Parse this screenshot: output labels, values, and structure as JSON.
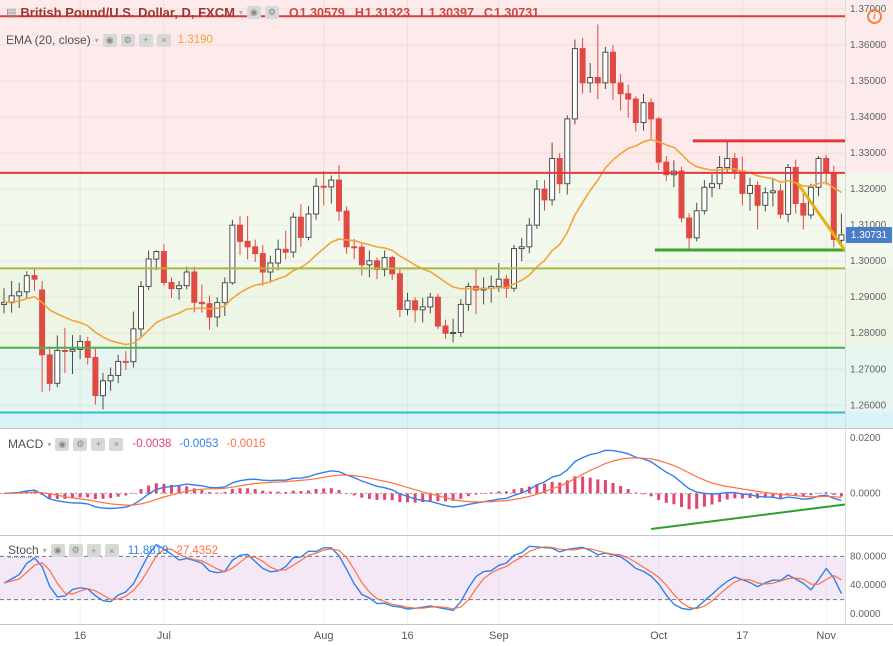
{
  "icon_glyphs": {
    "chart-icon": "▤",
    "chevron-down-icon": "▾",
    "eye-icon": "◉",
    "gear-icon": "⚙",
    "plus-icon": "+",
    "close-icon": "×",
    "info-icon": "i"
  },
  "header": {
    "title": "British Pound/U.S. Dollar, D, FXCM",
    "info_glyph": "i",
    "ohlc": [
      {
        "label": "O",
        "value": "1.30579"
      },
      {
        "label": "H",
        "value": "1.31323"
      },
      {
        "label": "L",
        "value": "1.30397"
      },
      {
        "label": "C",
        "value": "1.30731"
      }
    ]
  },
  "ema_legend": {
    "label": "EMA (20, close)",
    "value": "1.3190",
    "color": "#f2a33c"
  },
  "macd_legend": {
    "label": "MACD",
    "values": [
      {
        "text": "-0.0038",
        "color": "#e5446d"
      },
      {
        "text": "-0.0053",
        "color": "#2f80ed"
      },
      {
        "text": "-0.0016",
        "color": "#ff7043"
      }
    ]
  },
  "stoch_legend": {
    "label": "Stoch",
    "values": [
      {
        "text": "11.8819",
        "color": "#2f80ed"
      },
      {
        "text": "27.4352",
        "color": "#ff7043"
      }
    ]
  },
  "last_price": {
    "value": "1.30731",
    "bg": "#4a7dc9"
  },
  "chart_data": {
    "type": "candlestick",
    "title": "British Pound/U.S. Dollar, D, FXCM",
    "ema_period": 20,
    "price_axis": {
      "min": 1.2537,
      "max": 1.3725,
      "ticks": [
        "1.37000",
        "1.36000",
        "1.35000",
        "1.34000",
        "1.33000",
        "1.32000",
        "1.31000",
        "1.30000",
        "1.29000",
        "1.28000",
        "1.27000",
        "1.26000"
      ]
    },
    "time_ticks": [
      {
        "label": "16",
        "i": 10
      },
      {
        "label": "Jul",
        "i": 21
      },
      {
        "label": "Aug",
        "i": 42
      },
      {
        "label": "16",
        "i": 53
      },
      {
        "label": "Sep",
        "i": 65
      },
      {
        "label": "Oct",
        "i": 86
      },
      {
        "label": "17",
        "i": 97
      },
      {
        "label": "Nov",
        "i": 108
      }
    ],
    "candles": [
      [
        1.288,
        1.2925,
        1.2855,
        1.2885
      ],
      [
        1.2885,
        1.2945,
        1.2857,
        1.2904
      ],
      [
        1.2904,
        1.294,
        1.287,
        1.2915
      ],
      [
        1.2915,
        1.2972,
        1.2898,
        1.296
      ],
      [
        1.296,
        1.2978,
        1.2918,
        1.295
      ],
      [
        1.292,
        1.2945,
        1.2636,
        1.274
      ],
      [
        1.274,
        1.2758,
        1.264,
        1.2661
      ],
      [
        1.2661,
        1.2794,
        1.265,
        1.2752
      ],
      [
        1.2752,
        1.2815,
        1.269,
        1.275
      ],
      [
        1.275,
        1.2795,
        1.2687,
        1.2755
      ],
      [
        1.2755,
        1.2795,
        1.2728,
        1.2777
      ],
      [
        1.2777,
        1.279,
        1.2713,
        1.2733
      ],
      [
        1.2733,
        1.276,
        1.2602,
        1.2627
      ],
      [
        1.2627,
        1.269,
        1.2589,
        1.2668
      ],
      [
        1.2668,
        1.2705,
        1.264,
        1.2683
      ],
      [
        1.2683,
        1.274,
        1.2662,
        1.2722
      ],
      [
        1.2722,
        1.275,
        1.2698,
        1.2721
      ],
      [
        1.2721,
        1.286,
        1.2705,
        1.2812
      ],
      [
        1.2812,
        1.2945,
        1.279,
        1.293
      ],
      [
        1.293,
        1.303,
        1.292,
        1.3006
      ],
      [
        1.3006,
        1.303,
        1.2975,
        1.3027
      ],
      [
        1.3027,
        1.3047,
        1.2932,
        1.2941
      ],
      [
        1.2941,
        1.2955,
        1.2898,
        1.2924
      ],
      [
        1.2924,
        1.2945,
        1.2893,
        1.2932
      ],
      [
        1.2932,
        1.2985,
        1.2922,
        1.297
      ],
      [
        1.297,
        1.2985,
        1.2858,
        1.2886
      ],
      [
        1.2886,
        1.2935,
        1.2857,
        1.2882
      ],
      [
        1.2882,
        1.2905,
        1.281,
        1.2845
      ],
      [
        1.2845,
        1.29,
        1.2818,
        1.2885
      ],
      [
        1.2885,
        1.2955,
        1.2848,
        1.294
      ],
      [
        1.294,
        1.3115,
        1.2935,
        1.31
      ],
      [
        1.31,
        1.3125,
        1.3018,
        1.3055
      ],
      [
        1.3055,
        1.3126,
        1.3005,
        1.304
      ],
      [
        1.304,
        1.306,
        1.2998,
        1.3021
      ],
      [
        1.3021,
        1.3045,
        1.2932,
        1.297
      ],
      [
        1.297,
        1.3015,
        1.2945,
        1.2995
      ],
      [
        1.2995,
        1.306,
        1.2975,
        1.3033
      ],
      [
        1.3033,
        1.3085,
        1.3005,
        1.3025
      ],
      [
        1.3025,
        1.3135,
        1.301,
        1.3122
      ],
      [
        1.3122,
        1.3158,
        1.304,
        1.3066
      ],
      [
        1.3066,
        1.3153,
        1.3058,
        1.3131
      ],
      [
        1.3131,
        1.323,
        1.3115,
        1.3208
      ],
      [
        1.3208,
        1.325,
        1.3155,
        1.3206
      ],
      [
        1.3206,
        1.3238,
        1.316,
        1.3225
      ],
      [
        1.3225,
        1.3267,
        1.3112,
        1.3139
      ],
      [
        1.3139,
        1.3152,
        1.302,
        1.304
      ],
      [
        1.304,
        1.3062,
        1.3005,
        1.3039
      ],
      [
        1.3039,
        1.305,
        1.296,
        1.299
      ],
      [
        1.299,
        1.303,
        1.2955,
        1.3001
      ],
      [
        1.3001,
        1.301,
        1.295,
        1.2977
      ],
      [
        1.2977,
        1.303,
        1.2958,
        1.301
      ],
      [
        1.301,
        1.3015,
        1.2948,
        1.2965
      ],
      [
        1.2965,
        1.298,
        1.2845,
        1.2866
      ],
      [
        1.2866,
        1.2912,
        1.285,
        1.289
      ],
      [
        1.289,
        1.29,
        1.283,
        1.2865
      ],
      [
        1.2865,
        1.2898,
        1.283,
        1.2873
      ],
      [
        1.2873,
        1.2912,
        1.2855,
        1.29
      ],
      [
        1.29,
        1.291,
        1.2812,
        1.282
      ],
      [
        1.282,
        1.2838,
        1.2785,
        1.28
      ],
      [
        1.28,
        1.284,
        1.2775,
        1.2802
      ],
      [
        1.2802,
        1.2895,
        1.279,
        1.288
      ],
      [
        1.288,
        1.294,
        1.2862,
        1.293
      ],
      [
        1.293,
        1.298,
        1.2853,
        1.292
      ],
      [
        1.292,
        1.2955,
        1.288,
        1.2925
      ],
      [
        1.2925,
        1.296,
        1.2885,
        1.293
      ],
      [
        1.293,
        1.2995,
        1.2915,
        1.295
      ],
      [
        1.295,
        1.2962,
        1.2898,
        1.2925
      ],
      [
        1.2925,
        1.3045,
        1.2915,
        1.3035
      ],
      [
        1.3035,
        1.3065,
        1.3,
        1.304
      ],
      [
        1.304,
        1.312,
        1.3022,
        1.31
      ],
      [
        1.31,
        1.3225,
        1.309,
        1.32
      ],
      [
        1.32,
        1.3225,
        1.314,
        1.317
      ],
      [
        1.317,
        1.3329,
        1.3155,
        1.3285
      ],
      [
        1.3285,
        1.33,
        1.3188,
        1.3215
      ],
      [
        1.3215,
        1.3405,
        1.3185,
        1.3395
      ],
      [
        1.3395,
        1.3615,
        1.338,
        1.359
      ],
      [
        1.359,
        1.362,
        1.3465,
        1.3495
      ],
      [
        1.3495,
        1.355,
        1.3468,
        1.351
      ],
      [
        1.351,
        1.3657,
        1.345,
        1.3495
      ],
      [
        1.3495,
        1.3595,
        1.3478,
        1.358
      ],
      [
        1.358,
        1.36,
        1.3448,
        1.3495
      ],
      [
        1.3495,
        1.352,
        1.3418,
        1.3465
      ],
      [
        1.3465,
        1.349,
        1.3398,
        1.345
      ],
      [
        1.345,
        1.3458,
        1.336,
        1.3385
      ],
      [
        1.3385,
        1.3465,
        1.3362,
        1.344
      ],
      [
        1.344,
        1.3452,
        1.3338,
        1.3395
      ],
      [
        1.3395,
        1.34,
        1.3253,
        1.3275
      ],
      [
        1.3275,
        1.3292,
        1.3222,
        1.324
      ],
      [
        1.324,
        1.328,
        1.3205,
        1.325
      ],
      [
        1.325,
        1.3262,
        1.3108,
        1.312
      ],
      [
        1.312,
        1.3133,
        1.3027,
        1.3065
      ],
      [
        1.3065,
        1.3162,
        1.3055,
        1.314
      ],
      [
        1.314,
        1.3225,
        1.313,
        1.3205
      ],
      [
        1.3205,
        1.3242,
        1.3178,
        1.3215
      ],
      [
        1.3215,
        1.3292,
        1.32,
        1.326
      ],
      [
        1.326,
        1.3337,
        1.3248,
        1.3285
      ],
      [
        1.3285,
        1.33,
        1.3228,
        1.325
      ],
      [
        1.325,
        1.329,
        1.3155,
        1.3188
      ],
      [
        1.3188,
        1.3232,
        1.314,
        1.321
      ],
      [
        1.321,
        1.3222,
        1.3088,
        1.3155
      ],
      [
        1.3155,
        1.3205,
        1.3138,
        1.319
      ],
      [
        1.319,
        1.323,
        1.3152,
        1.3195
      ],
      [
        1.3195,
        1.3215,
        1.3118,
        1.313
      ],
      [
        1.313,
        1.327,
        1.3108,
        1.326
      ],
      [
        1.326,
        1.3282,
        1.3132,
        1.316
      ],
      [
        1.316,
        1.3195,
        1.3088,
        1.3128
      ],
      [
        1.3128,
        1.3215,
        1.3118,
        1.3205
      ],
      [
        1.3205,
        1.3292,
        1.318,
        1.3285
      ],
      [
        1.3285,
        1.3295,
        1.3212,
        1.3245
      ],
      [
        1.3245,
        1.3265,
        1.3038,
        1.306
      ],
      [
        1.3058,
        1.3132,
        1.304,
        1.3073
      ]
    ],
    "zones": [
      {
        "from": 1.3725,
        "to": 1.3245,
        "color": "rgba(242,84,84,0.12)"
      },
      {
        "from": 1.3245,
        "to": 1.298,
        "color": "rgba(124,188,72,0.10)"
      },
      {
        "from": 1.298,
        "to": 1.276,
        "color": "rgba(124,188,72,0.14)"
      },
      {
        "from": 1.276,
        "to": 1.258,
        "color": "rgba(56,170,140,0.12)"
      },
      {
        "from": 1.258,
        "to": 1.2537,
        "color": "rgba(38,186,210,0.18)"
      }
    ],
    "hlines": [
      {
        "price": 1.368,
        "color": "#e23a3a",
        "width": 2
      },
      {
        "price": 1.3245,
        "color": "#e23a3a",
        "width": 2
      },
      {
        "price": 1.298,
        "color": "#a8b93c",
        "width": 2
      },
      {
        "price": 1.276,
        "color": "#4bae4f",
        "width": 2
      },
      {
        "price": 1.258,
        "color": "#2fbccc",
        "width": 2
      }
    ],
    "segments": [
      {
        "name": "resistance-line",
        "i1": 90.5,
        "i2": 112,
        "p1": 1.3334,
        "p2": 1.3334,
        "color": "#e23a3a",
        "width": 3
      },
      {
        "name": "support-line",
        "i1": 85.5,
        "i2": 112,
        "p1": 1.3031,
        "p2": 1.3031,
        "color": "#3fa32c",
        "width": 3
      },
      {
        "name": "trendline-yellow",
        "i1": 104.2,
        "i2": 110.9,
        "p1": 1.3218,
        "p2": 1.303,
        "color": "#e9b10e",
        "width": 3
      }
    ],
    "macd": {
      "fast": 12,
      "slow": 26,
      "signal": 9,
      "ticks": [
        {
          "label": "0.0200",
          "v": 0.02
        },
        {
          "label": "0.0000",
          "v": 0
        }
      ],
      "trendline": {
        "i1": 85,
        "v1": -0.0128,
        "i2": 112,
        "v2": -0.004,
        "color": "#2f9e2f",
        "width": 2
      }
    },
    "stoch": {
      "k": 14,
      "smooth": 3,
      "d": 3,
      "ticks": [
        {
          "label": "80.0000",
          "v": 80
        },
        {
          "label": "40.0000",
          "v": 40
        },
        {
          "label": "0.0000",
          "v": 0
        }
      ],
      "bands": [
        80,
        20
      ]
    },
    "colors": {
      "grid": "rgba(60,70,90,0.07)",
      "up_body": "#ffffff",
      "up_border": "#4d4d4d",
      "down": "#df4b44",
      "ema": "#f2a33c",
      "macd_hist": "#e5446d",
      "macd_line": "#2f80ed",
      "macd_signal": "#ff7043",
      "stoch_k": "#2f80ed",
      "stoch_d": "#ff7043",
      "stoch_band": "rgba(186,104,200,0.16)"
    }
  }
}
